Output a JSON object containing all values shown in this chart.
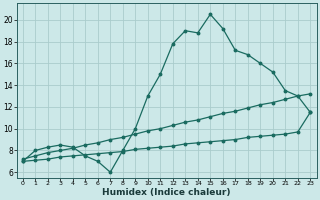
{
  "title": "",
  "xlabel": "Humidex (Indice chaleur)",
  "bg_color": "#cce8e8",
  "grid_color": "#aacccc",
  "line_color": "#1a6b60",
  "xlim": [
    -0.5,
    23.5
  ],
  "ylim": [
    5.5,
    21.5
  ],
  "xticks": [
    0,
    1,
    2,
    3,
    4,
    5,
    6,
    7,
    8,
    9,
    10,
    11,
    12,
    13,
    14,
    15,
    16,
    17,
    18,
    19,
    20,
    21,
    22,
    23
  ],
  "yticks": [
    6,
    8,
    10,
    12,
    14,
    16,
    18,
    20
  ],
  "x": [
    0,
    1,
    2,
    3,
    4,
    5,
    6,
    7,
    8,
    9,
    10,
    11,
    12,
    13,
    14,
    15,
    16,
    17,
    18,
    19,
    20,
    21,
    22,
    23
  ],
  "y_max": [
    7.0,
    8.0,
    8.3,
    8.5,
    8.3,
    7.5,
    7.0,
    6.0,
    8.0,
    10.0,
    13.0,
    15.0,
    17.8,
    19.0,
    18.8,
    20.5,
    19.2,
    17.2,
    16.8,
    16.0,
    15.2,
    13.5,
    13.0,
    11.5
  ],
  "y_mean": [
    7.2,
    7.5,
    7.8,
    8.0,
    8.2,
    8.5,
    8.7,
    9.0,
    9.2,
    9.5,
    9.8,
    10.0,
    10.3,
    10.6,
    10.8,
    11.1,
    11.4,
    11.6,
    11.9,
    12.2,
    12.4,
    12.7,
    13.0,
    13.2
  ],
  "y_min": [
    7.0,
    7.1,
    7.2,
    7.4,
    7.5,
    7.6,
    7.7,
    7.8,
    7.9,
    8.1,
    8.2,
    8.3,
    8.4,
    8.6,
    8.7,
    8.8,
    8.9,
    9.0,
    9.2,
    9.3,
    9.4,
    9.5,
    9.7,
    11.5
  ]
}
